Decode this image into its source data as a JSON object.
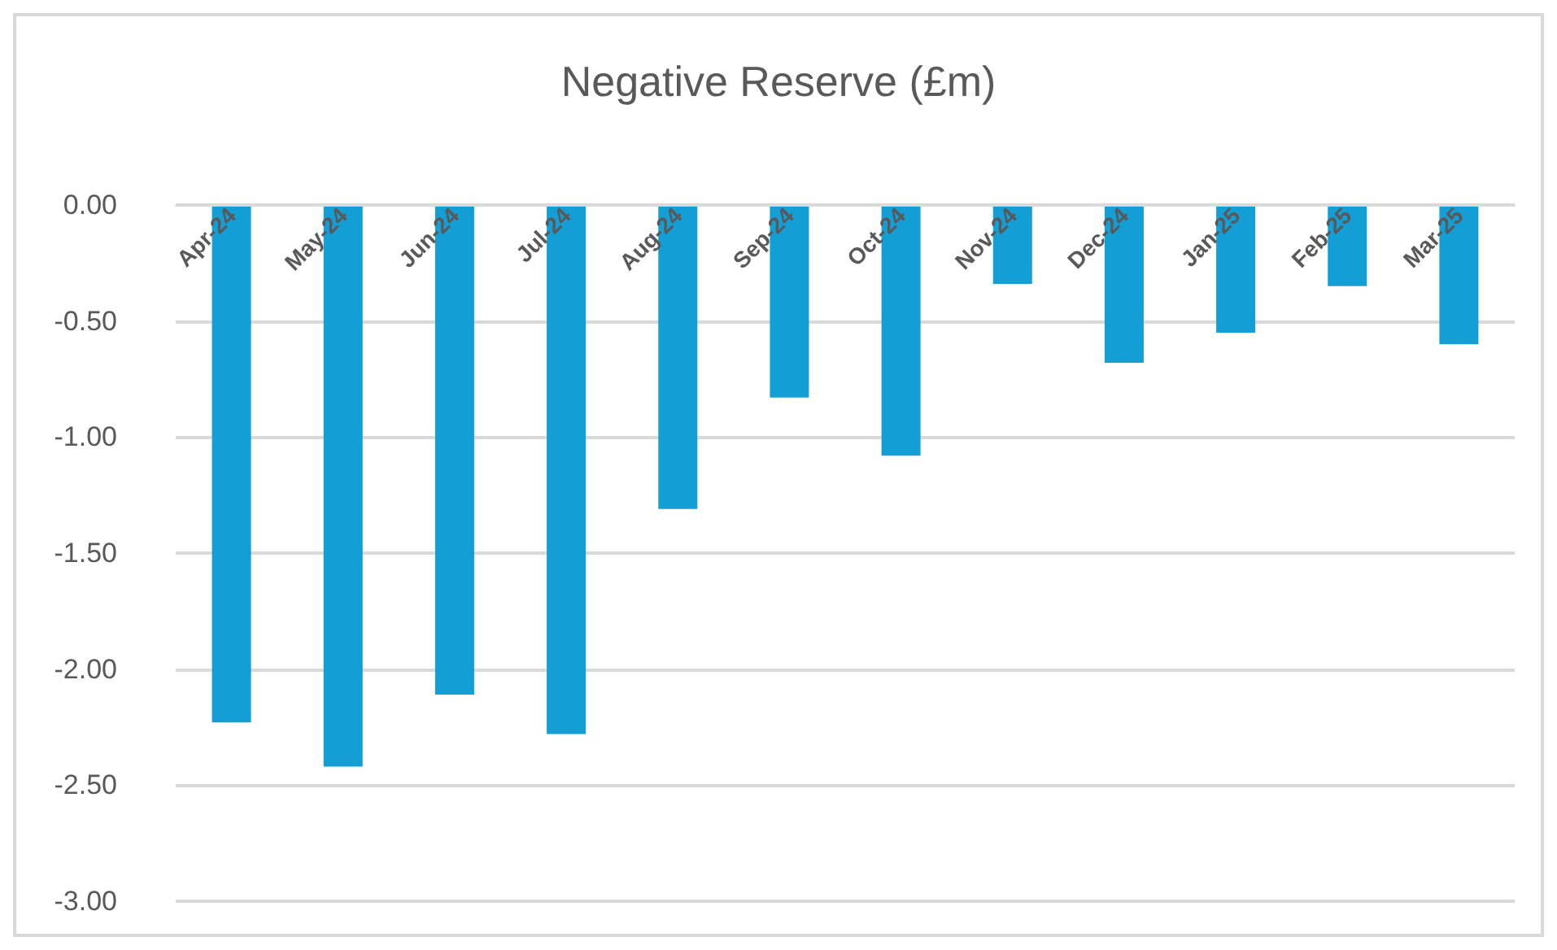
{
  "chart_data": {
    "type": "bar",
    "title": "Negative Reserve (£m)",
    "categories": [
      "Apr-24",
      "May-24",
      "Jun-24",
      "Jul-24",
      "Aug-24",
      "Sep-24",
      "Oct-24",
      "Nov-24",
      "Dec-24",
      "Jan-25",
      "Feb-25",
      "Mar-25"
    ],
    "values": [
      -2.23,
      -2.42,
      -2.11,
      -2.28,
      -1.31,
      -0.83,
      -1.08,
      -0.34,
      -0.68,
      -0.55,
      -0.35,
      -0.6
    ],
    "color": "#139fd6",
    "ylim": [
      -3,
      0
    ],
    "yticks": [
      {
        "value": -3,
        "label": "-3.00"
      },
      {
        "value": -2.5,
        "label": "-2.50"
      },
      {
        "value": -2,
        "label": "-2.00"
      },
      {
        "value": -1.5,
        "label": "-1.50"
      },
      {
        "value": -1,
        "label": "-1.00"
      },
      {
        "value": -0.5,
        "label": "-0.50"
      },
      {
        "value": 0,
        "label": "0.00"
      }
    ],
    "grid": "y"
  }
}
